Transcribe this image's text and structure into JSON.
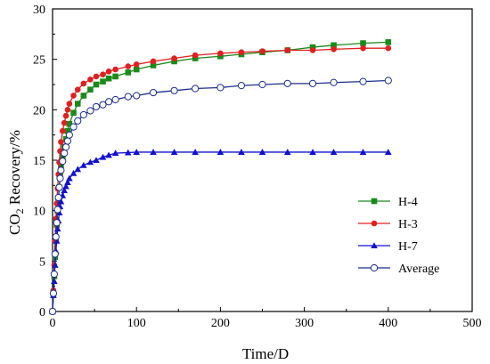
{
  "chart_data": {
    "type": "line",
    "title": "",
    "xlabel": "Time/D",
    "ylabel_parts": {
      "pre": "CO",
      "sub": "2",
      "post": " Recovery/%"
    },
    "xlim": [
      0,
      500
    ],
    "ylim": [
      0,
      30
    ],
    "xticks": [
      0,
      100,
      200,
      300,
      400,
      500
    ],
    "yticks": [
      0,
      5,
      10,
      15,
      20,
      25,
      30
    ],
    "xtick_labels": [
      "0",
      "100",
      "200",
      "300",
      "400",
      "500"
    ],
    "ytick_labels": [
      "0",
      "5",
      "10",
      "15",
      "20",
      "25",
      "30"
    ],
    "grid": false,
    "legend_position": "right",
    "series": [
      {
        "name": "H-4",
        "color": "#1a8a1a",
        "marker": "square",
        "x": [
          0,
          1,
          2,
          3,
          4,
          5,
          6,
          7,
          8,
          9,
          10,
          12,
          14,
          16,
          18,
          20,
          25,
          30,
          37,
          45,
          52,
          60,
          67,
          75,
          90,
          100,
          120,
          145,
          170,
          200,
          225,
          250,
          280,
          310,
          335,
          370,
          400
        ],
        "y": [
          0,
          1.8,
          3.5,
          5.4,
          7.1,
          8.6,
          10.0,
          11.2,
          12.3,
          13.4,
          14.3,
          15.3,
          16.3,
          17.1,
          17.9,
          18.6,
          19.7,
          20.6,
          21.4,
          22.0,
          22.5,
          22.8,
          23.1,
          23.3,
          23.7,
          24.0,
          24.4,
          24.8,
          25.1,
          25.3,
          25.5,
          25.7,
          25.9,
          26.2,
          26.4,
          26.6,
          26.7
        ]
      },
      {
        "name": "H-3",
        "color": "#e02020",
        "marker": "circle",
        "x": [
          0,
          1,
          2,
          3,
          4,
          5,
          6,
          7,
          8,
          9,
          10,
          12,
          14,
          16,
          18,
          20,
          25,
          30,
          37,
          45,
          52,
          60,
          67,
          75,
          90,
          100,
          120,
          145,
          170,
          200,
          225,
          250,
          280,
          310,
          335,
          370,
          400
        ],
        "y": [
          0,
          2.1,
          4.6,
          7.0,
          9.2,
          10.7,
          12.2,
          13.6,
          14.8,
          15.9,
          16.8,
          17.9,
          18.7,
          19.4,
          20.0,
          20.6,
          21.4,
          22.0,
          22.6,
          23.0,
          23.3,
          23.5,
          23.8,
          24.0,
          24.3,
          24.5,
          24.8,
          25.1,
          25.4,
          25.6,
          25.7,
          25.8,
          25.9,
          25.9,
          26.0,
          26.1,
          26.1
        ]
      },
      {
        "name": "H-7",
        "color": "#1010d0",
        "marker": "triangle",
        "x": [
          0,
          1,
          2,
          3,
          4,
          5,
          6,
          7,
          8,
          9,
          10,
          12,
          14,
          16,
          18,
          20,
          25,
          30,
          37,
          45,
          52,
          60,
          67,
          75,
          90,
          100,
          120,
          145,
          170,
          200,
          225,
          250,
          280,
          310,
          335,
          370,
          400
        ],
        "y": [
          0,
          1.6,
          3.0,
          4.6,
          6.0,
          7.0,
          8.2,
          9.0,
          9.8,
          10.4,
          10.9,
          11.5,
          12.0,
          12.4,
          12.8,
          13.2,
          13.7,
          14.1,
          14.5,
          14.8,
          15.0,
          15.3,
          15.5,
          15.7,
          15.75,
          15.8,
          15.8,
          15.8,
          15.8,
          15.8,
          15.8,
          15.8,
          15.8,
          15.8,
          15.8,
          15.8,
          15.8
        ]
      },
      {
        "name": "Average",
        "color": "#1c2e8c",
        "marker": "open-circle",
        "x": [
          0,
          1,
          2,
          3,
          4,
          5,
          6,
          7,
          8,
          9,
          10,
          12,
          14,
          16,
          18,
          20,
          25,
          30,
          37,
          45,
          52,
          60,
          67,
          75,
          90,
          100,
          120,
          145,
          170,
          200,
          225,
          250,
          280,
          310,
          335,
          370,
          400
        ],
        "y": [
          0,
          1.8,
          3.7,
          5.7,
          7.4,
          8.8,
          10.1,
          11.3,
          12.3,
          13.2,
          14.0,
          14.9,
          15.7,
          16.3,
          16.9,
          17.5,
          18.3,
          18.9,
          19.5,
          19.9,
          20.3,
          20.5,
          20.8,
          21.0,
          21.3,
          21.4,
          21.7,
          21.9,
          22.1,
          22.2,
          22.4,
          22.5,
          22.6,
          22.6,
          22.7,
          22.8,
          22.9
        ]
      }
    ]
  }
}
